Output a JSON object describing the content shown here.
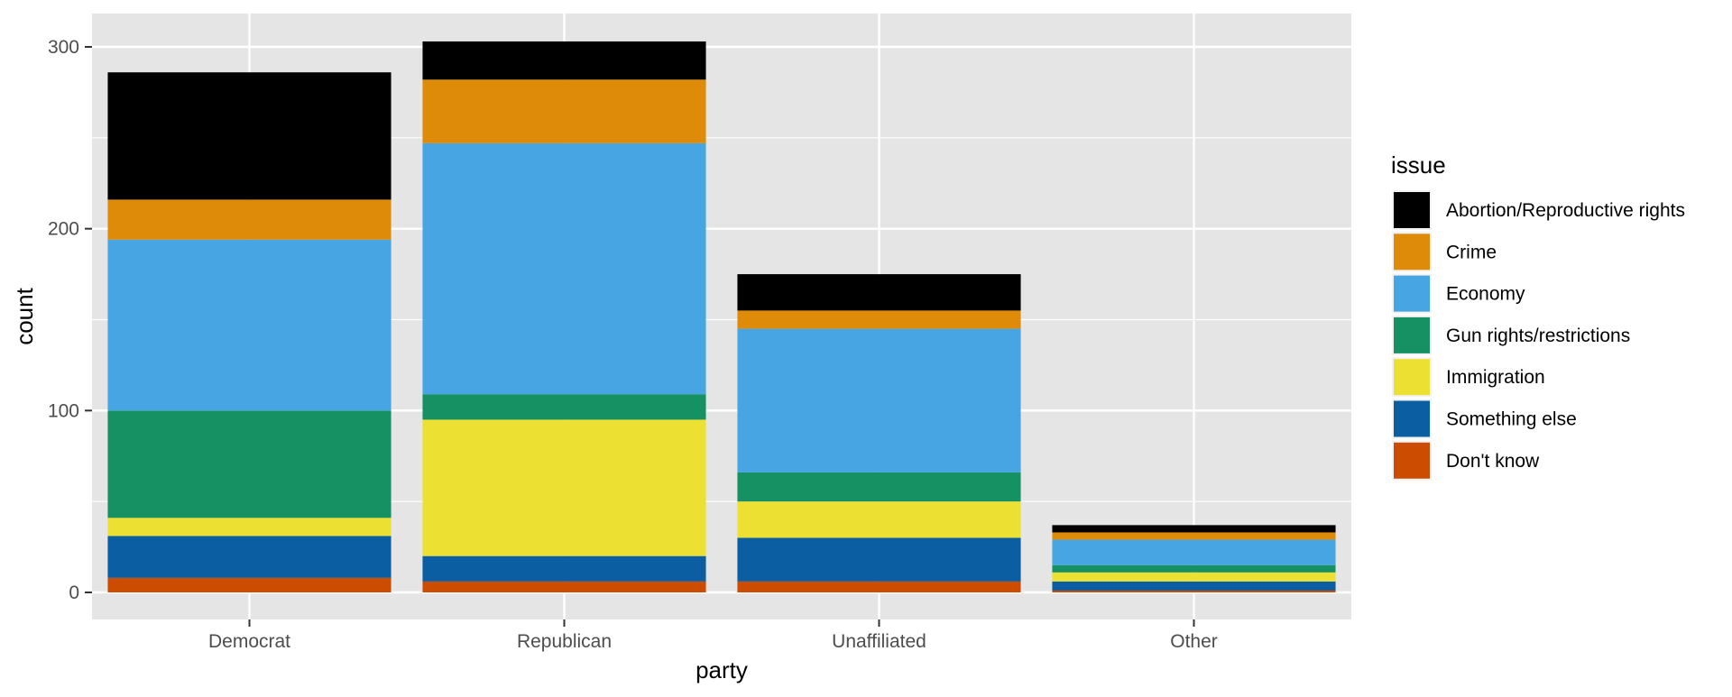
{
  "chart_data": {
    "type": "bar",
    "stacked": true,
    "title": "",
    "xlabel": "party",
    "ylabel": "count",
    "ylim": [
      -15,
      320
    ],
    "yticks": [
      0,
      100,
      200,
      300
    ],
    "grid": true,
    "legend_position": "right",
    "legend_title": "issue",
    "panel_background": "#e5e5e5",
    "categories": [
      "Democrat",
      "Republican",
      "Unaffiliated",
      "Other"
    ],
    "series": [
      {
        "name": "Don't know",
        "color": "#cc4c02",
        "values": [
          8,
          6,
          6,
          1
        ]
      },
      {
        "name": "Something else",
        "color": "#0b5ea1",
        "values": [
          23,
          14,
          24,
          5
        ]
      },
      {
        "name": "Immigration",
        "color": "#ece133",
        "values": [
          10,
          75,
          20,
          5
        ]
      },
      {
        "name": "Gun rights/restrictions",
        "color": "#169163",
        "values": [
          59,
          14,
          16,
          4
        ]
      },
      {
        "name": "Economy",
        "color": "#48a5e3",
        "values": [
          94,
          138,
          79,
          14
        ]
      },
      {
        "name": "Crime",
        "color": "#df8b0a",
        "values": [
          22,
          35,
          10,
          4
        ]
      },
      {
        "name": "Abortion/Reproductive rights",
        "color": "#000000",
        "values": [
          70,
          21,
          20,
          4
        ]
      }
    ],
    "legend_order": [
      "Abortion/Reproductive rights",
      "Crime",
      "Economy",
      "Gun rights/restrictions",
      "Immigration",
      "Something else",
      "Don't know"
    ]
  }
}
